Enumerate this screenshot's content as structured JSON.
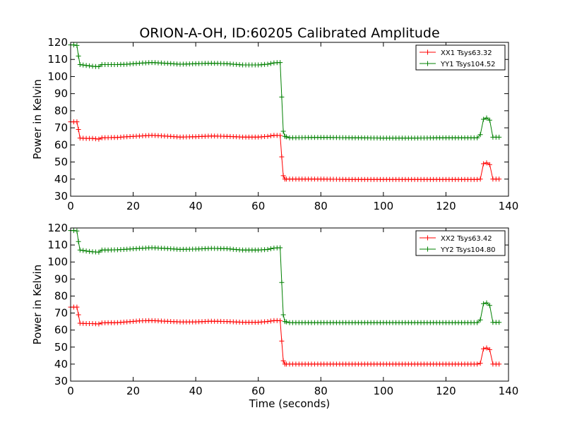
{
  "title": "ORION-A-OH, ID:60205 Calibrated Amplitude",
  "chart_data": [
    {
      "type": "line",
      "ylabel": "Power in Kelvin",
      "xlabel": "",
      "xlim": [
        0,
        140
      ],
      "ylim": [
        30,
        120
      ],
      "xticks": [
        0,
        20,
        40,
        60,
        80,
        100,
        120,
        140
      ],
      "yticks": [
        30,
        40,
        50,
        60,
        70,
        80,
        90,
        100,
        110,
        120
      ],
      "legend_position": "top-right",
      "grid": false,
      "series": [
        {
          "name": "XX1 Tsys63.32",
          "color": "#ff0000",
          "points": [
            [
              0,
              73.5
            ],
            [
              1,
              73.5
            ],
            [
              2,
              73.5
            ],
            [
              2.5,
              69
            ],
            [
              3,
              64
            ],
            [
              5,
              63.8
            ],
            [
              7,
              63.8
            ],
            [
              9,
              63.4
            ],
            [
              10,
              64.2
            ],
            [
              15,
              64.4
            ],
            [
              18,
              64.8
            ],
            [
              22,
              65.2
            ],
            [
              26,
              65.6
            ],
            [
              30,
              65.2
            ],
            [
              35,
              64.6
            ],
            [
              40,
              64.8
            ],
            [
              45,
              65.2
            ],
            [
              50,
              65.0
            ],
            [
              55,
              64.6
            ],
            [
              60,
              64.6
            ],
            [
              63,
              65.0
            ],
            [
              65,
              65.6
            ],
            [
              67,
              65.5
            ],
            [
              67.5,
              53
            ],
            [
              68,
              42
            ],
            [
              68.5,
              40
            ],
            [
              70,
              40
            ],
            [
              80,
              40
            ],
            [
              90,
              39.8
            ],
            [
              100,
              39.8
            ],
            [
              110,
              39.8
            ],
            [
              120,
              39.8
            ],
            [
              130,
              39.8
            ],
            [
              131,
              40
            ],
            [
              132,
              49
            ],
            [
              133,
              49.5
            ],
            [
              134,
              48.5
            ],
            [
              135,
              40
            ],
            [
              136,
              40
            ],
            [
              137,
              40
            ]
          ]
        },
        {
          "name": "YY1 Tsys104.52",
          "color": "#008000",
          "points": [
            [
              0,
              118.5
            ],
            [
              1,
              118.5
            ],
            [
              2,
              118.2
            ],
            [
              2.5,
              112
            ],
            [
              3,
              107
            ],
            [
              5,
              106.5
            ],
            [
              7,
              106
            ],
            [
              9,
              105.8
            ],
            [
              10,
              107
            ],
            [
              15,
              107
            ],
            [
              18,
              107.2
            ],
            [
              22,
              107.8
            ],
            [
              26,
              108.2
            ],
            [
              30,
              107.8
            ],
            [
              35,
              107.2
            ],
            [
              40,
              107.5
            ],
            [
              45,
              107.8
            ],
            [
              50,
              107.5
            ],
            [
              55,
              106.8
            ],
            [
              60,
              106.8
            ],
            [
              63,
              107.2
            ],
            [
              65,
              108
            ],
            [
              67,
              108.2
            ],
            [
              67.5,
              88
            ],
            [
              68,
              68
            ],
            [
              68.5,
              65
            ],
            [
              70,
              64.2
            ],
            [
              80,
              64.4
            ],
            [
              90,
              64.2
            ],
            [
              100,
              64
            ],
            [
              110,
              64
            ],
            [
              120,
              64.2
            ],
            [
              130,
              64.2
            ],
            [
              131,
              66
            ],
            [
              132,
              75
            ],
            [
              133,
              75.8
            ],
            [
              134,
              74.5
            ],
            [
              135,
              64.5
            ],
            [
              136,
              64.5
            ],
            [
              137,
              64.5
            ]
          ]
        }
      ]
    },
    {
      "type": "line",
      "ylabel": "Power in Kelvin",
      "xlabel": "Time (seconds)",
      "xlim": [
        0,
        140
      ],
      "ylim": [
        30,
        120
      ],
      "xticks": [
        0,
        20,
        40,
        60,
        80,
        100,
        120,
        140
      ],
      "yticks": [
        30,
        40,
        50,
        60,
        70,
        80,
        90,
        100,
        110,
        120
      ],
      "legend_position": "top-right",
      "grid": false,
      "series": [
        {
          "name": "XX2 Tsys63.42",
          "color": "#ff0000",
          "points": [
            [
              0,
              73.5
            ],
            [
              1,
              73.5
            ],
            [
              2,
              73.5
            ],
            [
              2.5,
              69
            ],
            [
              3,
              64
            ],
            [
              5,
              63.8
            ],
            [
              7,
              63.8
            ],
            [
              9,
              63.6
            ],
            [
              10,
              64.2
            ],
            [
              15,
              64.4
            ],
            [
              18,
              64.8
            ],
            [
              22,
              65.4
            ],
            [
              26,
              65.6
            ],
            [
              30,
              65.2
            ],
            [
              35,
              64.8
            ],
            [
              40,
              64.8
            ],
            [
              45,
              65.2
            ],
            [
              50,
              65.0
            ],
            [
              55,
              64.6
            ],
            [
              60,
              64.6
            ],
            [
              63,
              65.0
            ],
            [
              65,
              65.6
            ],
            [
              67,
              65.5
            ],
            [
              67.5,
              53.5
            ],
            [
              68,
              42
            ],
            [
              68.5,
              40
            ],
            [
              70,
              40
            ],
            [
              80,
              40
            ],
            [
              90,
              40
            ],
            [
              100,
              40
            ],
            [
              110,
              40
            ],
            [
              120,
              40
            ],
            [
              130,
              40
            ],
            [
              131,
              40.5
            ],
            [
              132,
              49
            ],
            [
              133,
              49.5
            ],
            [
              134,
              48.5
            ],
            [
              135,
              40
            ],
            [
              136,
              40
            ],
            [
              137,
              40
            ]
          ]
        },
        {
          "name": "YY2 Tsys104.80",
          "color": "#008000",
          "points": [
            [
              0,
              118.5
            ],
            [
              1,
              118.5
            ],
            [
              2,
              118.2
            ],
            [
              2.5,
              112
            ],
            [
              3,
              107
            ],
            [
              5,
              106.5
            ],
            [
              7,
              106
            ],
            [
              9,
              105.8
            ],
            [
              10,
              107
            ],
            [
              15,
              107.2
            ],
            [
              18,
              107.5
            ],
            [
              22,
              108
            ],
            [
              26,
              108.4
            ],
            [
              30,
              108
            ],
            [
              35,
              107.4
            ],
            [
              40,
              107.6
            ],
            [
              45,
              108
            ],
            [
              50,
              107.8
            ],
            [
              55,
              107
            ],
            [
              60,
              107
            ],
            [
              63,
              107.4
            ],
            [
              65,
              108.2
            ],
            [
              67,
              108.4
            ],
            [
              67.5,
              88
            ],
            [
              68,
              69
            ],
            [
              68.5,
              65
            ],
            [
              70,
              64.4
            ],
            [
              80,
              64.4
            ],
            [
              90,
              64.4
            ],
            [
              100,
              64.4
            ],
            [
              110,
              64.4
            ],
            [
              120,
              64.4
            ],
            [
              130,
              64.4
            ],
            [
              131,
              66
            ],
            [
              132,
              75.5
            ],
            [
              133,
              76
            ],
            [
              134,
              74.5
            ],
            [
              135,
              64.5
            ],
            [
              136,
              64.5
            ],
            [
              137,
              64.5
            ]
          ]
        }
      ]
    }
  ]
}
